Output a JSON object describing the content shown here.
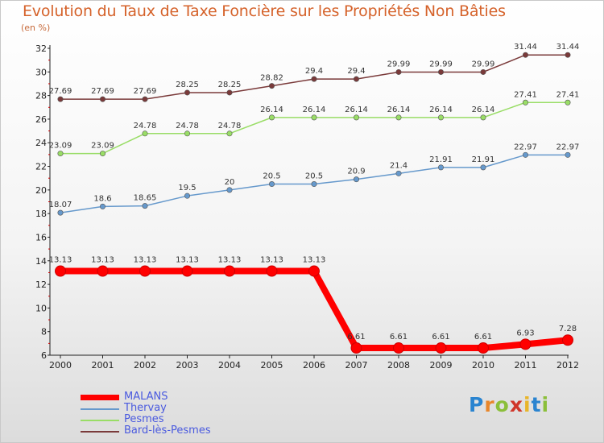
{
  "chart_data": {
    "type": "line",
    "title": "Evolution du Taux de Taxe Foncière sur les Propriétés Non Bâties",
    "subtitle": "(en %)",
    "categories": [
      "2000",
      "2001",
      "2002",
      "2003",
      "2004",
      "2005",
      "2006",
      "2007",
      "2008",
      "2009",
      "2010",
      "2011",
      "2012"
    ],
    "ylim": [
      6,
      32
    ],
    "yticks": [
      6,
      8,
      10,
      12,
      14,
      16,
      18,
      20,
      22,
      24,
      26,
      28,
      30,
      32
    ],
    "series": [
      {
        "name": "MALANS",
        "color": "#ff0000",
        "values": [
          13.13,
          13.13,
          13.13,
          13.13,
          13.13,
          13.13,
          13.13,
          6.61,
          6.61,
          6.61,
          6.61,
          6.93,
          7.28
        ],
        "labels": [
          "13.13",
          "13.13",
          "13.13",
          "13.13",
          "13.13",
          "13.13",
          "13.13",
          "6.61",
          "6.61",
          "6.61",
          "6.61",
          "6.93",
          "7.28"
        ]
      },
      {
        "name": "Thervay",
        "color": "#6699cc",
        "values": [
          18.07,
          18.6,
          18.65,
          19.5,
          20,
          20.5,
          20.5,
          20.9,
          21.4,
          21.91,
          21.91,
          22.97,
          22.97
        ],
        "labels": [
          "18.07",
          "18.6",
          "18.65",
          "19.5",
          "20",
          "20.5",
          "20.5",
          "20.9",
          "21.4",
          "21.91",
          "21.91",
          "22.97",
          "22.97"
        ]
      },
      {
        "name": "Pesmes",
        "color": "#99dd66",
        "values": [
          23.09,
          23.09,
          24.78,
          24.78,
          24.78,
          26.14,
          26.14,
          26.14,
          26.14,
          26.14,
          26.14,
          27.41,
          27.41
        ],
        "labels": [
          "23.09",
          "23.09",
          "24.78",
          "24.78",
          "24.78",
          "26.14",
          "26.14",
          "26.14",
          "26.14",
          "26.14",
          "26.14",
          "27.41",
          "27.41"
        ]
      },
      {
        "name": "Bard-lès-Pesmes",
        "color": "#7a3a3a",
        "values": [
          27.69,
          27.69,
          27.69,
          28.25,
          28.25,
          28.82,
          29.4,
          29.4,
          29.99,
          29.99,
          29.99,
          31.44,
          31.44
        ],
        "labels": [
          "27.69",
          "27.69",
          "27.69",
          "28.25",
          "28.25",
          "28.82",
          "29.4",
          "29.4",
          "29.99",
          "29.99",
          "29.99",
          "31.44",
          "31.44"
        ]
      }
    ],
    "legend": "bottom-left",
    "grid": false
  },
  "branding": {
    "logo_letters": [
      "P",
      "r",
      "o",
      "x",
      "i",
      "t",
      "i"
    ]
  }
}
